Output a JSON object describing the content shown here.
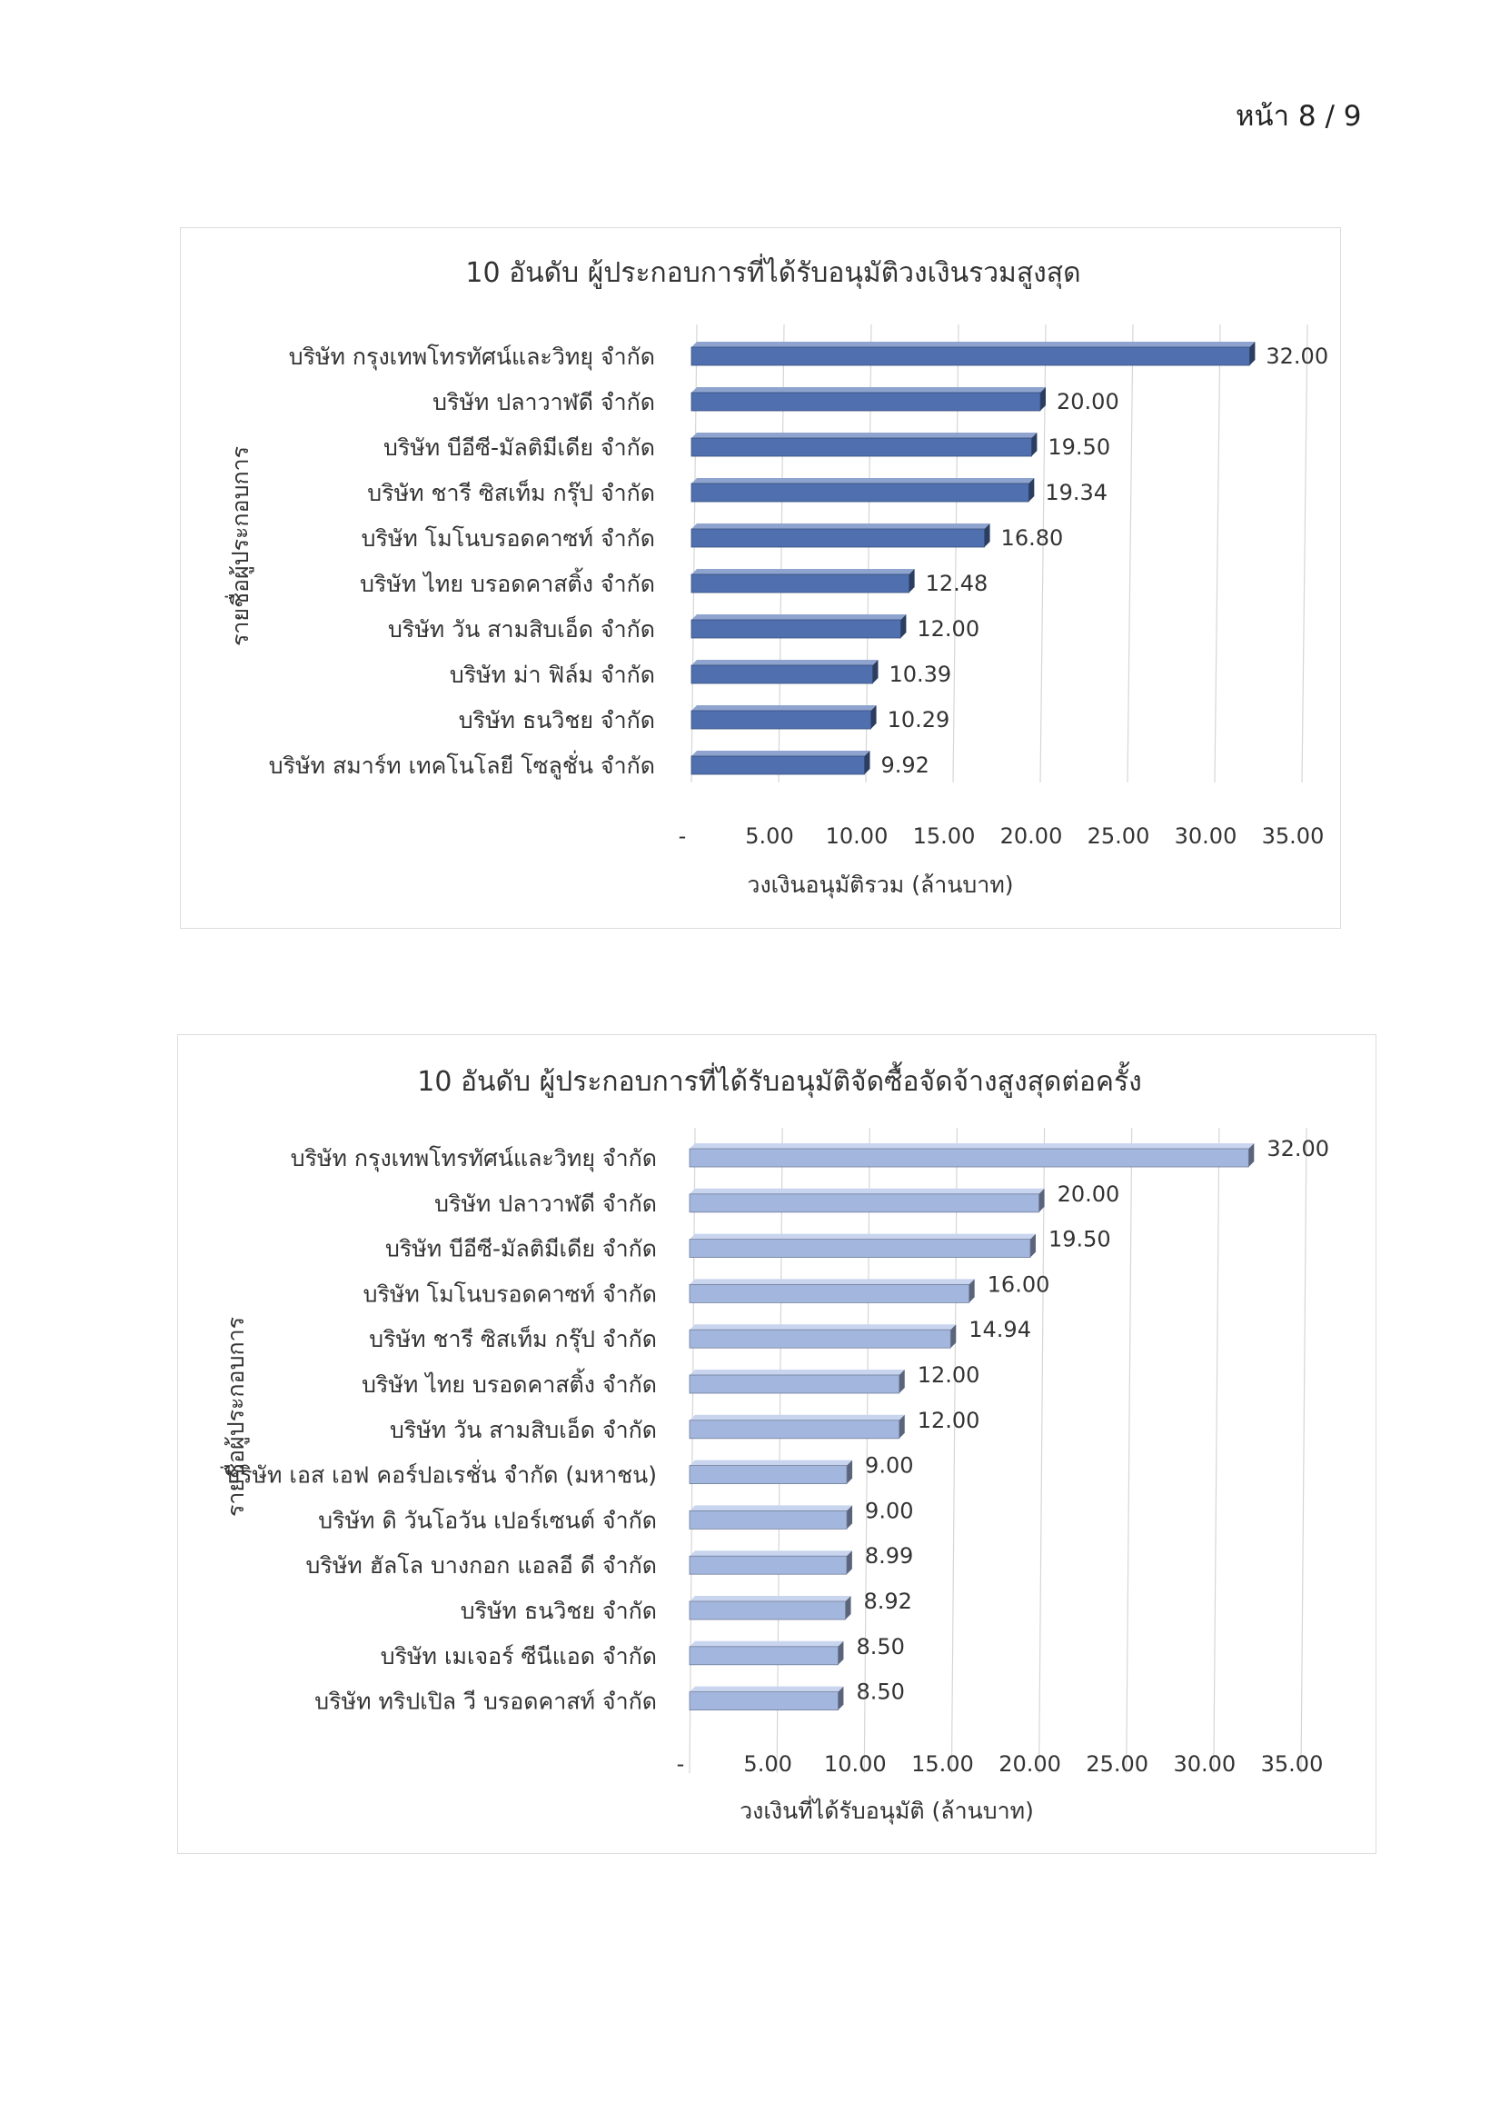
{
  "page": {
    "number_label": "หน้า 8 / 9"
  },
  "chart_data": [
    {
      "type": "bar",
      "orientation": "horizontal",
      "title": "10 อันดับ ผู้ประกอบการที่ได้รับอนุมัติวงเงินรวมสูงสุด",
      "ylabel": "รายชื่อผู้ประกอบการ",
      "xlabel": "วงเงินอนุมัติรวม (ล้านบาท)",
      "xlim": [
        0,
        35
      ],
      "x_ticks": [
        "-",
        "5.00",
        "10.00",
        "15.00",
        "20.00",
        "25.00",
        "30.00",
        "35.00"
      ],
      "grid": true,
      "bar_color": "#4f6faf",
      "bar_top_color": "#8ea4cf",
      "categories": [
        "บริษัท กรุงเทพโทรทัศน์และวิทยุ จำกัด",
        "บริษัท ปลาวาฬดี จำกัด",
        "บริษัท บีอีซี-มัลติมีเดีย จำกัด",
        "บริษัท ชารี ซิสเท็ม กรุ๊ป จำกัด",
        "บริษัท โมโนบรอดคาซท์ จำกัด",
        "บริษัท ไทย บรอดคาสติ้ง จำกัด",
        "บริษัท วัน สามสิบเอ็ด จำกัด",
        "บริษัท ม่า ฟิล์ม จำกัด",
        "บริษัท ธนวิชย จำกัด",
        "บริษัท สมาร์ท เทคโนโลยี โซลูชั่น จำกัด"
      ],
      "values": [
        32.0,
        20.0,
        19.5,
        19.34,
        16.8,
        12.48,
        12.0,
        10.39,
        10.29,
        9.92
      ],
      "value_labels": [
        "32.00",
        "20.00",
        "19.50",
        "19.34",
        "16.80",
        "12.48",
        "12.00",
        "10.39",
        "10.29",
        "9.92"
      ]
    },
    {
      "type": "bar",
      "orientation": "horizontal",
      "title": "10 อันดับ ผู้ประกอบการที่ได้รับอนุมัติจัดซื้อจัดจ้างสูงสุดต่อครั้ง",
      "ylabel": "รายชื่อผู้ประกอบการ",
      "xlabel": "วงเงินที่ได้รับอนุมัติ (ล้านบาท)",
      "xlim": [
        0,
        35
      ],
      "x_ticks": [
        "-",
        "5.00",
        "10.00",
        "15.00",
        "20.00",
        "25.00",
        "30.00",
        "35.00"
      ],
      "grid": true,
      "bar_color": "#a3b6dd",
      "bar_top_color": "#c9d5ee",
      "categories": [
        "บริษัท กรุงเทพโทรทัศน์และวิทยุ จำกัด",
        "บริษัท ปลาวาฬดี จำกัด",
        "บริษัท บีอีซี-มัลติมีเดีย จำกัด",
        "บริษัท โมโนบรอดคาซท์ จำกัด",
        "บริษัท ชารี ซิสเท็ม กรุ๊ป จำกัด",
        "บริษัท ไทย บรอดคาสติ้ง จำกัด",
        "บริษัท วัน สามสิบเอ็ด จำกัด",
        "บริษัท เอส เอฟ คอร์ปอเรชั่น จำกัด (มหาชน)",
        "บริษัท ดิ วันโอวัน เปอร์เซนต์ จำกัด",
        "บริษัท ฮัลโล บางกอก แอลอี ดี จำกัด",
        "บริษัท ธนวิชย จำกัด",
        "บริษัท เมเจอร์ ซีนีแอด จำกัด",
        "บริษัท ทริปเปิล วี บรอดคาสท์ จำกัด"
      ],
      "values": [
        32.0,
        20.0,
        19.5,
        16.0,
        14.94,
        12.0,
        12.0,
        9.0,
        9.0,
        8.99,
        8.92,
        8.5,
        8.5
      ],
      "value_labels": [
        "32.00",
        "20.00",
        "19.50",
        "16.00",
        "14.94",
        "12.00",
        "12.00",
        "9.00",
        "9.00",
        "8.99",
        "8.92",
        "8.50",
        "8.50"
      ]
    }
  ]
}
